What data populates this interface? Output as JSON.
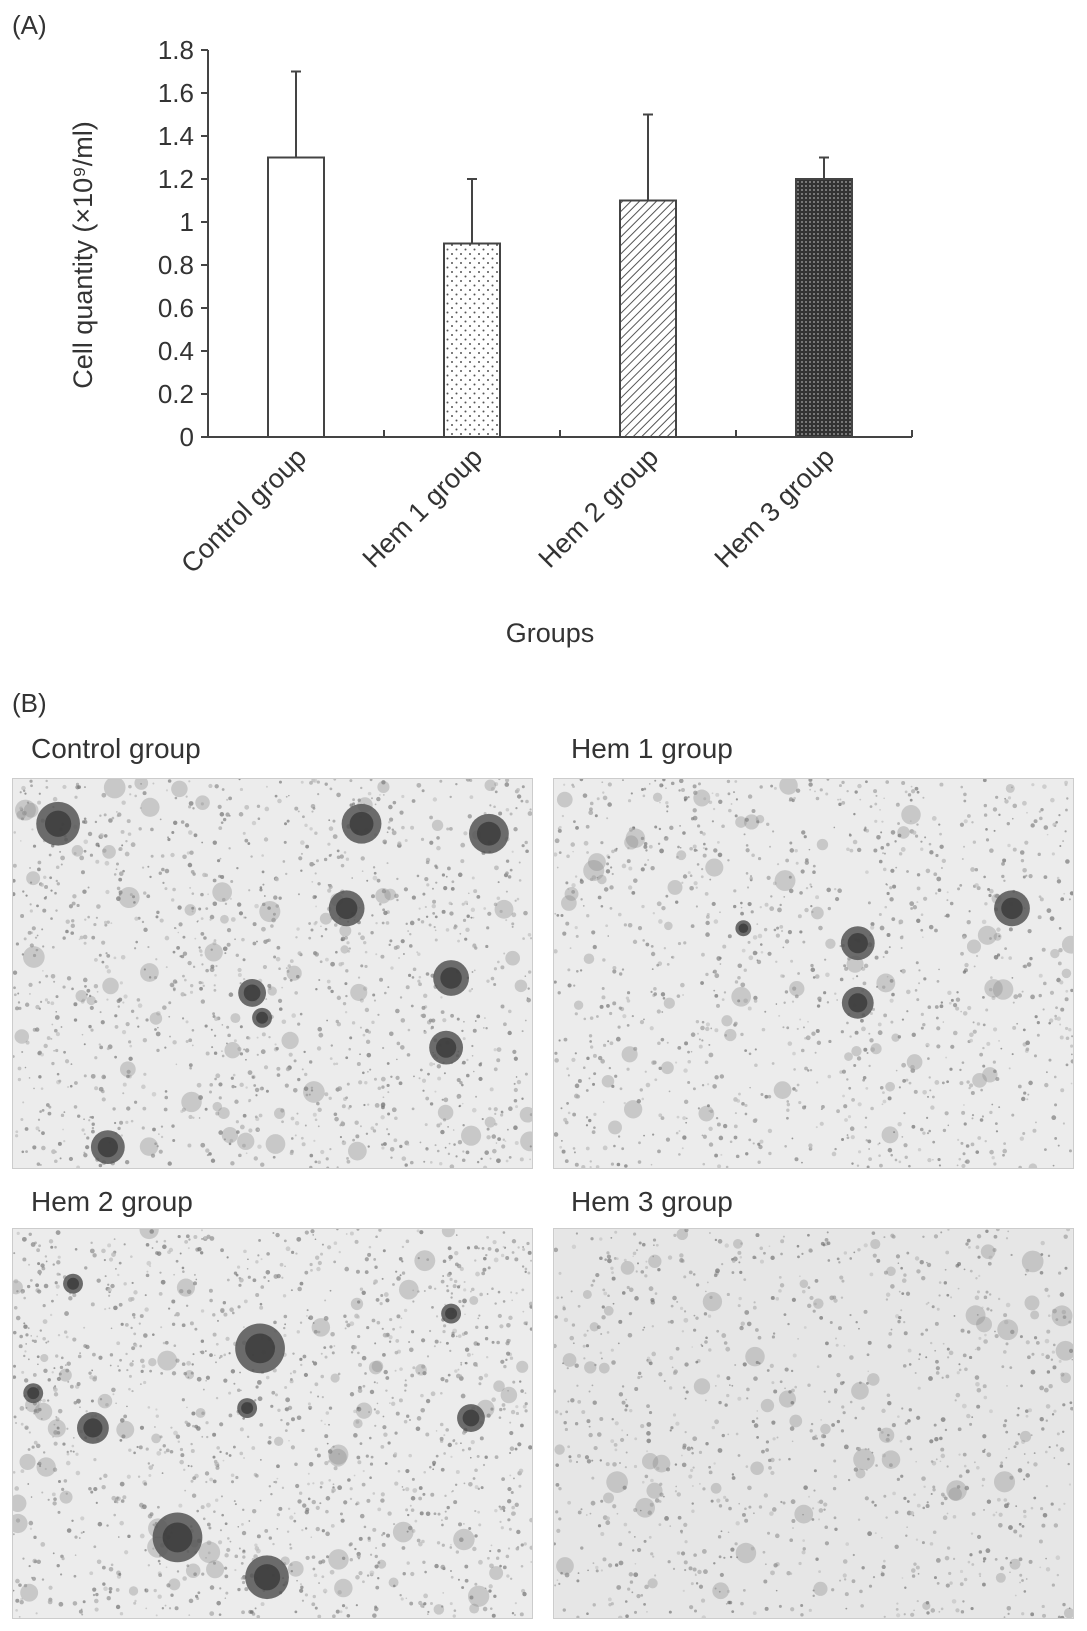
{
  "panel_a": {
    "label": "(A)"
  },
  "panel_b": {
    "label": "(B)",
    "images": [
      {
        "title": "Control group"
      },
      {
        "title": "Hem 1 group"
      },
      {
        "title": "Hem 2 group"
      },
      {
        "title": "Hem 3 group"
      }
    ]
  },
  "chart_data": {
    "type": "bar",
    "categories": [
      "Control group",
      "Hem 1 group",
      "Hem 2 group",
      "Hem 3 group"
    ],
    "values": [
      1.3,
      0.9,
      1.1,
      1.2
    ],
    "error_upper": [
      0.4,
      0.3,
      0.4,
      0.1
    ],
    "fill_patterns": [
      "blank",
      "dots",
      "diagonal-hatch",
      "dense-crosshatch"
    ],
    "xlabel": "Groups",
    "ylabel": "Cell quantity (×10⁹/ml)",
    "ylim": [
      0,
      1.8
    ],
    "yticks": [
      "0",
      "0.2",
      "0.4",
      "0.6",
      "0.8",
      "1",
      "1.2",
      "1.4",
      "1.6",
      "1.8"
    ],
    "grid": false
  }
}
